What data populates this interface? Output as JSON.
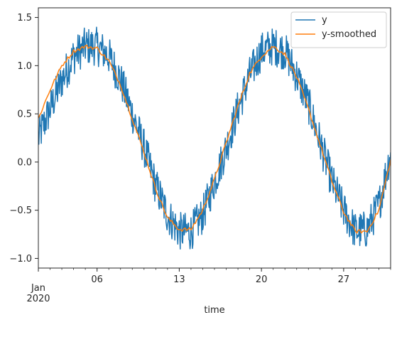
{
  "chart_data": {
    "type": "line",
    "title": "",
    "xlabel": "time",
    "ylabel": "",
    "x_start": "2020-01-01",
    "x_end": "2020-01-31",
    "xlim": [
      "2020-01-01",
      "2020-01-31"
    ],
    "ylim": [
      -1.1,
      1.6
    ],
    "x_ticks": [
      {
        "date": "2020-01-06",
        "label": "06"
      },
      {
        "date": "2020-01-13",
        "label": "13"
      },
      {
        "date": "2020-01-20",
        "label": "20"
      },
      {
        "date": "2020-01-27",
        "label": "27"
      }
    ],
    "x_tick_month": "Jan",
    "x_tick_year": "2020",
    "y_ticks": [
      -1.0,
      -0.5,
      0.0,
      0.5,
      1.0,
      1.5
    ],
    "y_tick_labels": [
      "−1.0",
      "−0.5",
      "0.0",
      "0.5",
      "1.0",
      "1.5"
    ],
    "legend": {
      "position": "top-right"
    },
    "grid": false,
    "series": [
      {
        "name": "y",
        "color": "#1f77b4",
        "x": [
          "2020-01-01",
          "2020-01-02",
          "2020-01-03",
          "2020-01-04",
          "2020-01-05",
          "2020-01-06",
          "2020-01-07",
          "2020-01-08",
          "2020-01-09",
          "2020-01-10",
          "2020-01-11",
          "2020-01-12",
          "2020-01-13",
          "2020-01-14",
          "2020-01-15",
          "2020-01-16",
          "2020-01-17",
          "2020-01-18",
          "2020-01-19",
          "2020-01-20",
          "2020-01-21",
          "2020-01-22",
          "2020-01-23",
          "2020-01-24",
          "2020-01-25",
          "2020-01-26",
          "2020-01-27",
          "2020-01-28",
          "2020-01-29",
          "2020-01-30",
          "2020-01-31"
        ],
        "values": [
          0.25,
          0.55,
          0.85,
          1.1,
          1.2,
          1.2,
          1.1,
          0.85,
          0.5,
          0.15,
          -0.25,
          -0.55,
          -0.72,
          -0.72,
          -0.55,
          -0.2,
          0.15,
          0.55,
          0.9,
          1.15,
          1.2,
          1.15,
          0.9,
          0.6,
          0.2,
          -0.2,
          -0.5,
          -0.72,
          -0.7,
          -0.45,
          0.1
        ],
        "noise_amplitude": 0.2
      },
      {
        "name": "y-smoothed",
        "color": "#ff7f0e",
        "x": [
          "2020-01-01",
          "2020-01-02",
          "2020-01-03",
          "2020-01-04",
          "2020-01-05",
          "2020-01-06",
          "2020-01-07",
          "2020-01-08",
          "2020-01-09",
          "2020-01-10",
          "2020-01-11",
          "2020-01-12",
          "2020-01-13",
          "2020-01-14",
          "2020-01-15",
          "2020-01-16",
          "2020-01-17",
          "2020-01-18",
          "2020-01-19",
          "2020-01-20",
          "2020-01-21",
          "2020-01-22",
          "2020-01-23",
          "2020-01-24",
          "2020-01-25",
          "2020-01-26",
          "2020-01-27",
          "2020-01-28",
          "2020-01-29",
          "2020-01-30",
          "2020-01-31"
        ],
        "values": [
          0.45,
          0.75,
          1.0,
          1.15,
          1.2,
          1.18,
          1.05,
          0.8,
          0.45,
          0.1,
          -0.28,
          -0.58,
          -0.7,
          -0.7,
          -0.5,
          -0.18,
          0.2,
          0.58,
          0.92,
          1.1,
          1.2,
          1.12,
          0.88,
          0.55,
          0.18,
          -0.2,
          -0.52,
          -0.72,
          -0.72,
          -0.5,
          0.02
        ]
      }
    ]
  }
}
